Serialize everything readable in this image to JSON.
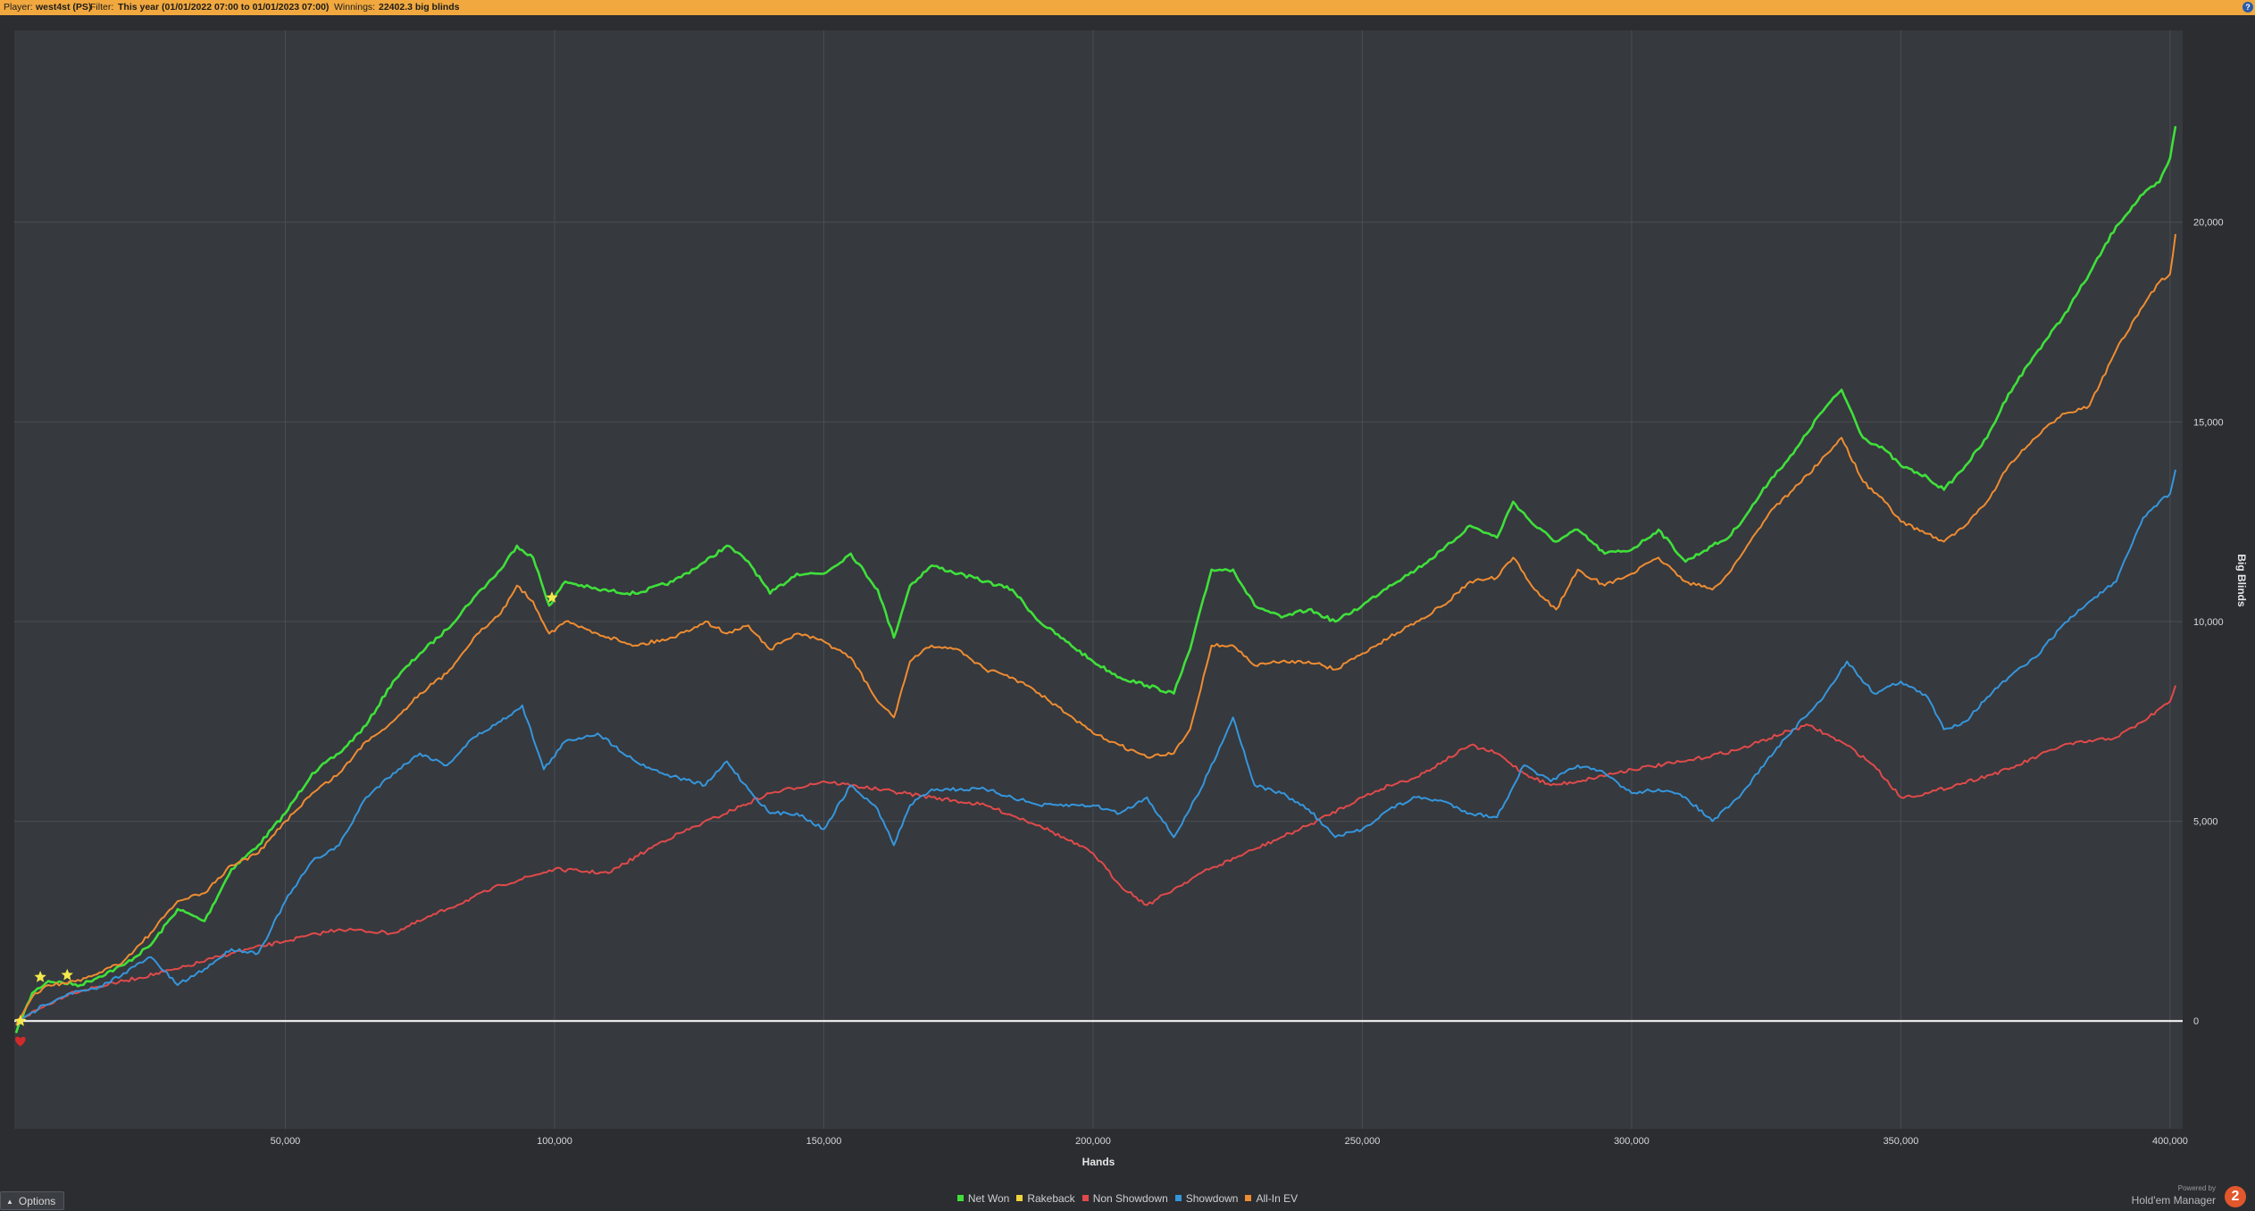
{
  "header": {
    "player_label": "Player:",
    "player_value": "west4st (PS)",
    "filter_label": "Filter:",
    "filter_value": "This year (01/01/2022 07:00 to 01/01/2023 07:00)",
    "winnings_label": "Winnings:",
    "winnings_value": "22402.3 big blinds",
    "help_icon": "?"
  },
  "options_button": {
    "label": "Options"
  },
  "branding": {
    "powered_by": "Powered by",
    "product": "Hold'em Manager",
    "logo_text": "2"
  },
  "colors": {
    "background": "#2b2d31",
    "plot_background": "#36393e",
    "grid": "#4a4d52",
    "header_bar": "#f0a83f",
    "net_won": "#3fe03a",
    "rakeback": "#f2d43c",
    "non_showdown": "#e04a4a",
    "showdown": "#3596dc",
    "all_in_ev": "#ef8c31"
  },
  "chart_data": {
    "type": "line",
    "xlabel": "Hands",
    "ylabel": "Big Blinds",
    "xlim": [
      0,
      402000
    ],
    "ylim": [
      -2700,
      24800
    ],
    "x_ticks": [
      50000,
      100000,
      150000,
      200000,
      250000,
      300000,
      350000,
      400000
    ],
    "x_tick_labels": [
      "50,000",
      "100,000",
      "150,000",
      "200,000",
      "250,000",
      "300,000",
      "350,000",
      "400,000"
    ],
    "y_ticks": [
      0,
      5000,
      10000,
      15000,
      20000
    ],
    "y_tick_labels": [
      "0",
      "5,000",
      "10,000",
      "15,000",
      "20,000"
    ],
    "grid": true,
    "legend_position": "bottom-center",
    "series": [
      {
        "name": "Net Won",
        "color": "#3fe03a",
        "x": [
          0,
          3000,
          6000,
          12000,
          20000,
          25000,
          30000,
          35000,
          40000,
          45000,
          50000,
          55000,
          60000,
          65000,
          70000,
          75000,
          80000,
          85000,
          90000,
          93000,
          96000,
          99000,
          102000,
          108000,
          115000,
          122000,
          128000,
          132000,
          136000,
          140000,
          145000,
          150000,
          155000,
          160000,
          163000,
          166000,
          170000,
          175000,
          180000,
          185000,
          190000,
          195000,
          200000,
          205000,
          210000,
          215000,
          218000,
          222000,
          226000,
          230000,
          235000,
          240000,
          245000,
          250000,
          255000,
          260000,
          265000,
          270000,
          275000,
          278000,
          282000,
          286000,
          290000,
          295000,
          300000,
          305000,
          310000,
          315000,
          318000,
          322000,
          326000,
          330000,
          335000,
          339000,
          343000,
          347000,
          350000,
          355000,
          358000,
          362000,
          366000,
          370000,
          375000,
          380000,
          385000,
          390000,
          395000,
          398000,
          400000,
          401000
        ],
        "y": [
          -300,
          700,
          1000,
          900,
          1400,
          1900,
          2800,
          2500,
          3800,
          4400,
          5200,
          6200,
          6700,
          7400,
          8500,
          9200,
          9800,
          10600,
          11300,
          11900,
          11600,
          10400,
          11000,
          10800,
          10700,
          11000,
          11500,
          11900,
          11500,
          10700,
          11200,
          11200,
          11700,
          10800,
          9600,
          10900,
          11400,
          11200,
          11000,
          10800,
          10000,
          9500,
          9000,
          8600,
          8400,
          8200,
          9300,
          11300,
          11300,
          10400,
          10100,
          10300,
          10000,
          10400,
          10900,
          11300,
          11800,
          12400,
          12100,
          13000,
          12400,
          12000,
          12300,
          11700,
          11800,
          12300,
          11500,
          11900,
          12100,
          12800,
          13600,
          14200,
          15200,
          15800,
          14600,
          14300,
          13900,
          13600,
          13300,
          13900,
          14600,
          15700,
          16700,
          17600,
          18700,
          19900,
          20700,
          21000,
          21600,
          22400
        ]
      },
      {
        "name": "Rakeback",
        "color": "#f2d43c",
        "x": [],
        "y": []
      },
      {
        "name": "Non Showdown",
        "color": "#e04a4a",
        "x": [
          0,
          10000,
          20000,
          30000,
          40000,
          50000,
          60000,
          70000,
          80000,
          90000,
          100000,
          110000,
          120000,
          130000,
          140000,
          150000,
          160000,
          170000,
          180000,
          190000,
          200000,
          205000,
          210000,
          215000,
          220000,
          230000,
          240000,
          250000,
          255000,
          260000,
          265000,
          270000,
          275000,
          280000,
          285000,
          290000,
          300000,
          310000,
          320000,
          330000,
          333000,
          340000,
          345000,
          350000,
          355000,
          360000,
          370000,
          380000,
          390000,
          395000,
          400000,
          401000
        ],
        "y": [
          0,
          700,
          1000,
          1300,
          1700,
          2000,
          2300,
          2200,
          2800,
          3400,
          3800,
          3700,
          4500,
          5100,
          5700,
          6000,
          5800,
          5600,
          5400,
          4900,
          4200,
          3400,
          2900,
          3300,
          3700,
          4300,
          4900,
          5600,
          5900,
          6100,
          6500,
          6900,
          6700,
          6200,
          5900,
          6000,
          6300,
          6500,
          6800,
          7300,
          7400,
          6900,
          6400,
          5600,
          5700,
          5900,
          6300,
          6900,
          7100,
          7500,
          8000,
          8400
        ]
      },
      {
        "name": "Showdown",
        "color": "#3596dc",
        "x": [
          0,
          5000,
          10000,
          15000,
          20000,
          25000,
          30000,
          35000,
          40000,
          45000,
          50000,
          55000,
          60000,
          65000,
          70000,
          75000,
          80000,
          85000,
          90000,
          94000,
          98000,
          102000,
          108000,
          115000,
          120000,
          128000,
          132000,
          136000,
          140000,
          145000,
          150000,
          155000,
          160000,
          163000,
          166000,
          170000,
          180000,
          190000,
          200000,
          205000,
          210000,
          215000,
          220000,
          226000,
          230000,
          235000,
          240000,
          245000,
          250000,
          255000,
          260000,
          265000,
          270000,
          275000,
          280000,
          285000,
          290000,
          295000,
          300000,
          305000,
          310000,
          315000,
          320000,
          325000,
          330000,
          335000,
          340000,
          345000,
          350000,
          355000,
          358000,
          362000,
          366000,
          370000,
          375000,
          380000,
          385000,
          390000,
          395000,
          398000,
          400000,
          401000
        ],
        "y": [
          -100,
          400,
          700,
          800,
          1200,
          1600,
          900,
          1300,
          1800,
          1700,
          3000,
          4000,
          4400,
          5600,
          6200,
          6700,
          6400,
          7100,
          7500,
          7900,
          6300,
          7000,
          7200,
          6500,
          6200,
          5900,
          6500,
          5800,
          5200,
          5200,
          4800,
          5900,
          5300,
          4400,
          5400,
          5800,
          5800,
          5400,
          5400,
          5200,
          5600,
          4600,
          5800,
          7600,
          5900,
          5700,
          5300,
          4600,
          4800,
          5300,
          5600,
          5500,
          5200,
          5100,
          6400,
          6000,
          6400,
          6200,
          5700,
          5800,
          5600,
          5000,
          5600,
          6500,
          7300,
          8000,
          9000,
          8200,
          8500,
          8100,
          7300,
          7500,
          8100,
          8600,
          9100,
          9900,
          10500,
          11000,
          12600,
          13000,
          13200,
          13800
        ]
      },
      {
        "name": "All-In EV",
        "color": "#ef8c31",
        "x": [
          0,
          3000,
          6000,
          12000,
          20000,
          25000,
          30000,
          35000,
          40000,
          45000,
          50000,
          55000,
          60000,
          65000,
          70000,
          75000,
          80000,
          85000,
          90000,
          93000,
          96000,
          99000,
          102000,
          108000,
          115000,
          122000,
          128000,
          132000,
          136000,
          140000,
          145000,
          150000,
          155000,
          160000,
          163000,
          166000,
          170000,
          175000,
          180000,
          185000,
          190000,
          195000,
          200000,
          205000,
          210000,
          215000,
          218000,
          222000,
          226000,
          230000,
          235000,
          240000,
          245000,
          250000,
          255000,
          260000,
          265000,
          270000,
          275000,
          278000,
          282000,
          286000,
          290000,
          295000,
          300000,
          305000,
          310000,
          315000,
          318000,
          322000,
          326000,
          330000,
          335000,
          339000,
          343000,
          347000,
          350000,
          355000,
          358000,
          362000,
          366000,
          370000,
          375000,
          380000,
          385000,
          390000,
          395000,
          398000,
          400000,
          401000
        ],
        "y": [
          -100,
          600,
          900,
          1000,
          1500,
          2200,
          3000,
          3200,
          3900,
          4200,
          5000,
          5700,
          6200,
          7000,
          7500,
          8200,
          8700,
          9600,
          10200,
          10900,
          10500,
          9700,
          10000,
          9700,
          9400,
          9600,
          10000,
          9700,
          9900,
          9300,
          9700,
          9500,
          9100,
          8000,
          7600,
          9000,
          9400,
          9300,
          8800,
          8600,
          8200,
          7700,
          7200,
          6900,
          6600,
          6700,
          7300,
          9400,
          9400,
          8900,
          9000,
          9000,
          8800,
          9200,
          9600,
          10000,
          10400,
          11000,
          11100,
          11600,
          10800,
          10300,
          11300,
          10900,
          11200,
          11600,
          11000,
          10800,
          11200,
          12000,
          12800,
          13300,
          14000,
          14600,
          13500,
          13000,
          12500,
          12200,
          12000,
          12400,
          13000,
          13900,
          14600,
          15200,
          15400,
          16800,
          17900,
          18500,
          18700,
          19700
        ]
      }
    ],
    "markers": [
      {
        "type": "star",
        "color": "#f2e84c",
        "x": 800,
        "y": 0
      },
      {
        "type": "star",
        "color": "#f2e84c",
        "x": 4500,
        "y": 1100
      },
      {
        "type": "star",
        "color": "#f2e84c",
        "x": 9500,
        "y": 1150
      },
      {
        "type": "star",
        "color": "#f2e84c",
        "x": 99500,
        "y": 10600
      },
      {
        "type": "heart",
        "color": "#d22a2a",
        "x": 800,
        "y": -500
      }
    ]
  }
}
